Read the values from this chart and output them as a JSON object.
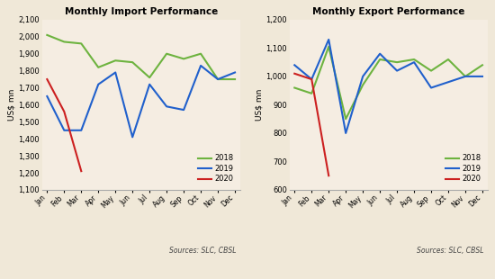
{
  "import_title": "Monthly Import Performance",
  "export_title": "Monthly Export Performance",
  "months": [
    "Jan",
    "Feb",
    "Mar",
    "Apr",
    "May",
    "Jun",
    "Jul",
    "Aug",
    "Sep",
    "Oct",
    "Nov",
    "Dec"
  ],
  "import_2018": [
    2010,
    1970,
    1960,
    1820,
    1860,
    1850,
    1760,
    1900,
    1870,
    1900,
    1750,
    1750
  ],
  "import_2019": [
    1650,
    1450,
    1450,
    1720,
    1790,
    1410,
    1720,
    1590,
    1570,
    1830,
    1750,
    1790
  ],
  "import_2020": [
    1750,
    1560,
    1210,
    null,
    null,
    null,
    null,
    null,
    null,
    null,
    null,
    null
  ],
  "export_2018": [
    960,
    940,
    1105,
    850,
    970,
    1060,
    1050,
    1060,
    1020,
    1060,
    1000,
    1040
  ],
  "export_2019": [
    1040,
    990,
    1130,
    800,
    1000,
    1080,
    1020,
    1050,
    960,
    980,
    1000,
    1000
  ],
  "export_2020": [
    1010,
    990,
    650,
    null,
    null,
    null,
    null,
    null,
    null,
    null,
    null,
    null
  ],
  "color_2018": "#6db33f",
  "color_2019": "#2060cc",
  "color_2020": "#cc2020",
  "bg_color": "#f5ede2",
  "fig_bg_color": "#f0e8d8",
  "import_ylim": [
    1100,
    2100
  ],
  "import_yticks": [
    1100,
    1200,
    1300,
    1400,
    1500,
    1600,
    1700,
    1800,
    1900,
    2000,
    2100
  ],
  "export_ylim": [
    600,
    1200
  ],
  "export_yticks": [
    600,
    700,
    800,
    900,
    1000,
    1100,
    1200
  ],
  "ylabel": "US$ mn",
  "source_text": "Sources: SLC, CBSL",
  "legend_labels": [
    "2018",
    "2019",
    "2020"
  ]
}
